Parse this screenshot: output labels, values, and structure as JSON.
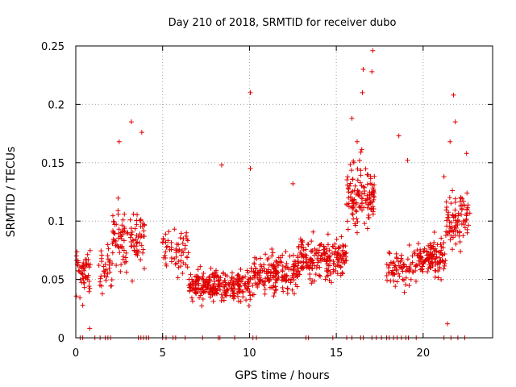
{
  "chart_data": {
    "type": "scatter",
    "title": "Day 210 of 2018, SRMTID for receiver dubo",
    "xlabel": "GPS time / hours",
    "ylabel": "SRMTID / TECUs",
    "xlim": [
      0,
      24
    ],
    "ylim": [
      0,
      0.25
    ],
    "x_ticks": [
      0,
      5,
      10,
      15,
      20
    ],
    "x_tick_labels": [
      "0",
      "5",
      "10",
      "15",
      "20"
    ],
    "y_ticks": [
      0,
      0.05,
      0.1,
      0.15,
      0.2,
      0.25
    ],
    "y_tick_labels": [
      "0",
      "0.05",
      "0.1",
      "0.15",
      "0.2",
      "0.25"
    ],
    "grid": true,
    "marker": "+",
    "color": "#e00000",
    "series": [
      {
        "name": "SRMTID",
        "segments": [
          {
            "start": 0.0,
            "end": 0.85,
            "base": 0.055,
            "spread": 0.035,
            "n": 55
          },
          {
            "start": 1.3,
            "end": 2.1,
            "base": 0.06,
            "spread": 0.03,
            "n": 35
          },
          {
            "start": 2.1,
            "end": 4.0,
            "base": 0.085,
            "spread": 0.04,
            "n": 110
          },
          {
            "start": 5.0,
            "end": 6.5,
            "base": 0.075,
            "spread": 0.03,
            "n": 60
          },
          {
            "start": 6.5,
            "end": 10.2,
            "base": 0.045,
            "spread": 0.022,
            "n": 260
          },
          {
            "start": 10.2,
            "end": 12.8,
            "base": 0.055,
            "spread": 0.025,
            "n": 180
          },
          {
            "start": 12.8,
            "end": 15.6,
            "base": 0.068,
            "spread": 0.028,
            "n": 200
          },
          {
            "start": 15.6,
            "end": 17.2,
            "base": 0.12,
            "spread": 0.05,
            "n": 130
          },
          {
            "start": 17.9,
            "end": 19.7,
            "base": 0.06,
            "spread": 0.025,
            "n": 80
          },
          {
            "start": 19.7,
            "end": 21.3,
            "base": 0.07,
            "spread": 0.025,
            "n": 120
          },
          {
            "start": 21.3,
            "end": 22.7,
            "base": 0.1,
            "spread": 0.035,
            "n": 90
          }
        ],
        "highlights": [
          {
            "x": 0.8,
            "y": 0.008
          },
          {
            "x": 2.5,
            "y": 0.168
          },
          {
            "x": 3.2,
            "y": 0.185
          },
          {
            "x": 3.8,
            "y": 0.176
          },
          {
            "x": 8.4,
            "y": 0.148
          },
          {
            "x": 10.05,
            "y": 0.21
          },
          {
            "x": 10.05,
            "y": 0.145
          },
          {
            "x": 12.5,
            "y": 0.132
          },
          {
            "x": 15.9,
            "y": 0.188
          },
          {
            "x": 16.2,
            "y": 0.168
          },
          {
            "x": 16.5,
            "y": 0.21
          },
          {
            "x": 16.55,
            "y": 0.23
          },
          {
            "x": 17.1,
            "y": 0.246
          },
          {
            "x": 17.05,
            "y": 0.228
          },
          {
            "x": 18.6,
            "y": 0.173
          },
          {
            "x": 19.1,
            "y": 0.152
          },
          {
            "x": 21.2,
            "y": 0.138
          },
          {
            "x": 21.55,
            "y": 0.168
          },
          {
            "x": 21.75,
            "y": 0.208
          },
          {
            "x": 21.85,
            "y": 0.185
          },
          {
            "x": 22.5,
            "y": 0.158
          },
          {
            "x": 21.4,
            "y": 0.012
          }
        ],
        "zero_ticks": [
          0.25,
          0.4,
          1.1,
          1.4,
          1.7,
          1.85,
          2.0,
          3.6,
          3.75,
          3.9,
          4.05,
          4.2,
          5.0,
          5.2,
          5.6,
          5.75,
          6.3,
          7.3,
          8.2,
          8.3,
          9.15,
          10.2,
          10.4,
          13.25,
          13.4,
          14.8,
          15.6,
          15.9,
          16.4,
          16.55,
          17.05,
          17.3,
          17.6,
          17.9,
          18.05,
          18.3,
          18.5,
          18.75,
          19.0,
          19.15,
          19.6,
          21.2,
          21.6,
          22.0,
          22.4
        ]
      }
    ]
  }
}
